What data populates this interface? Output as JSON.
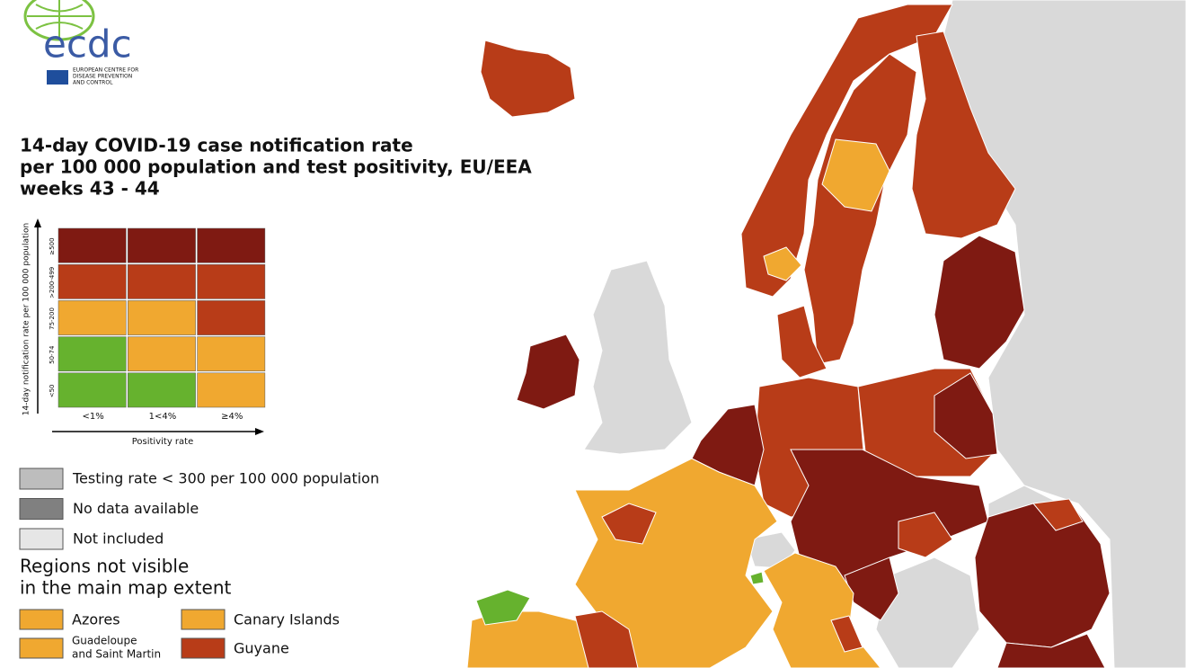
{
  "logo": {
    "name": "ecdc",
    "subtitle": [
      "EUROPEAN CENTRE FOR",
      "DISEASE PREVENTION",
      "AND CONTROL"
    ]
  },
  "title": [
    "14-day COVID-19 case notification rate",
    "per 100 000 population and test positivity, EU/EEA",
    "weeks 43 - 44"
  ],
  "matrix": {
    "y_label": "14-day notification rate per 100 000 population",
    "x_label": "Positivity rate",
    "rows": [
      "≥500",
      ">200-499",
      "75-200",
      "50-74",
      "<50"
    ],
    "columns": [
      "<1%",
      "1<4%",
      "≥4%"
    ],
    "colors": [
      [
        "#7f1a12",
        "#7f1a12",
        "#7f1a12"
      ],
      [
        "#b83c18",
        "#b83c18",
        "#b83c18"
      ],
      [
        "#f0a830",
        "#f0a830",
        "#b83c18"
      ],
      [
        "#66b22e",
        "#f0a830",
        "#f0a830"
      ],
      [
        "#66b22e",
        "#66b22e",
        "#f0a830"
      ]
    ]
  },
  "legend": [
    {
      "label": "Testing rate < 300 per 100 000 population",
      "color": "#bdbdbd"
    },
    {
      "label": "No data available",
      "color": "#808080"
    },
    {
      "label": "Not included",
      "color": "#e6e6e6"
    }
  ],
  "regions": {
    "title": [
      "Regions not visible",
      "in the main map extent"
    ],
    "items": [
      {
        "label": [
          "Azores"
        ],
        "color": "#f0a830"
      },
      {
        "label": [
          "Canary Islands"
        ],
        "color": "#f0a830"
      },
      {
        "label": [
          "Guadeloupe",
          "and Saint Martin"
        ],
        "color": "#f0a830"
      },
      {
        "label": [
          "Guyane"
        ],
        "color": "#b83c18"
      }
    ]
  }
}
